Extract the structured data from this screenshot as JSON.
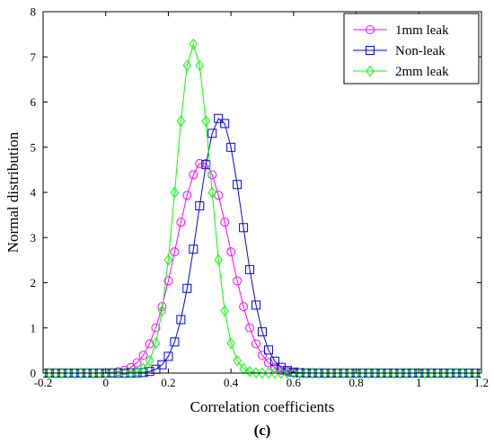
{
  "figure": {
    "caption": "(c)"
  },
  "chart_data": {
    "type": "line",
    "xlabel": "Correlation coefficients",
    "ylabel": "Normal distribution",
    "xlim": [
      -0.2,
      1.2
    ],
    "ylim": [
      0,
      8
    ],
    "x_ticks": [
      "-0.2",
      "0",
      "0.2",
      "0.4",
      "0.6",
      "0.8",
      "1",
      "1.2"
    ],
    "y_ticks": [
      "0",
      "1",
      "2",
      "3",
      "4",
      "5",
      "6",
      "7",
      "8"
    ],
    "grid": false,
    "legend_position": "top-right",
    "series": [
      {
        "name": "1mm leak",
        "color": "#ff00ff",
        "marker": "circle",
        "distribution": "normal",
        "mean": 0.31,
        "std": 0.0855,
        "peak": 4.67
      },
      {
        "name": "Non-leak",
        "color": "#0000ff",
        "marker": "square",
        "distribution": "normal",
        "mean": 0.365,
        "std": 0.0707,
        "peak": 5.65
      },
      {
        "name": "2mm leak",
        "color": "#00ff00",
        "marker": "diamond",
        "distribution": "normal",
        "mean": 0.28,
        "std": 0.0548,
        "peak": 7.28
      }
    ],
    "sample_x": {
      "start": -0.2,
      "end": 1.2,
      "step": 0.02
    }
  }
}
